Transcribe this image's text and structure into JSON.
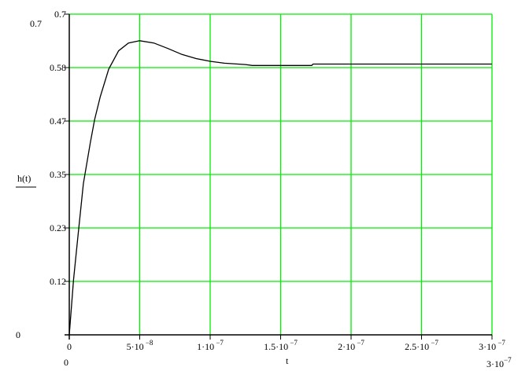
{
  "chart_data": {
    "type": "line",
    "xlabel": "t",
    "ylabel": "h(t)",
    "xlim": [
      0,
      3e-07
    ],
    "ylim": [
      0,
      0.7
    ],
    "xlim_labels": {
      "lower": "0",
      "upper_base": "3·10",
      "upper_exp": "−7"
    },
    "ylim_labels": {
      "lower": "0",
      "upper": "0.7"
    },
    "grid": true,
    "grid_color": "#00ee00",
    "line_color": "#000000",
    "x_ticks": [
      {
        "value": 0,
        "base": "0",
        "exp": ""
      },
      {
        "value": 5e-08,
        "base": "5·10",
        "exp": "−8"
      },
      {
        "value": 1e-07,
        "base": "1·10",
        "exp": "−7"
      },
      {
        "value": 1.5e-07,
        "base": "1.5·10",
        "exp": "−7"
      },
      {
        "value": 2e-07,
        "base": "2·10",
        "exp": "−7"
      },
      {
        "value": 2.5e-07,
        "base": "2.5·10",
        "exp": "−7"
      },
      {
        "value": 3e-07,
        "base": "3·10",
        "exp": "−7"
      }
    ],
    "y_ticks": [
      {
        "value": 0,
        "label": ""
      },
      {
        "value": 0.11667,
        "label": "0.12"
      },
      {
        "value": 0.23333,
        "label": "0.23"
      },
      {
        "value": 0.35,
        "label": "0.35"
      },
      {
        "value": 0.46667,
        "label": "0.47"
      },
      {
        "value": 0.58333,
        "label": "0.58"
      },
      {
        "value": 0.7,
        "label": "0.7"
      }
    ],
    "series": [
      {
        "x": [
          0,
          3e-09,
          6e-09,
          1e-08,
          1.5e-08,
          1.8e-08,
          2.2e-08,
          2.8e-08,
          3.5e-08,
          4.2e-08,
          5e-08,
          6e-08,
          7e-08,
          8e-08,
          9e-08,
          1e-07,
          1.1e-07,
          1.25e-07,
          1.3e-07,
          1.72e-07,
          1.73e-07,
          3e-07
        ],
        "y": [
          0,
          0.12,
          0.21,
          0.33,
          0.42,
          0.47,
          0.52,
          0.58,
          0.62,
          0.637,
          0.642,
          0.637,
          0.625,
          0.612,
          0.603,
          0.597,
          0.593,
          0.59,
          0.588,
          0.588,
          0.591,
          0.591
        ]
      }
    ]
  }
}
